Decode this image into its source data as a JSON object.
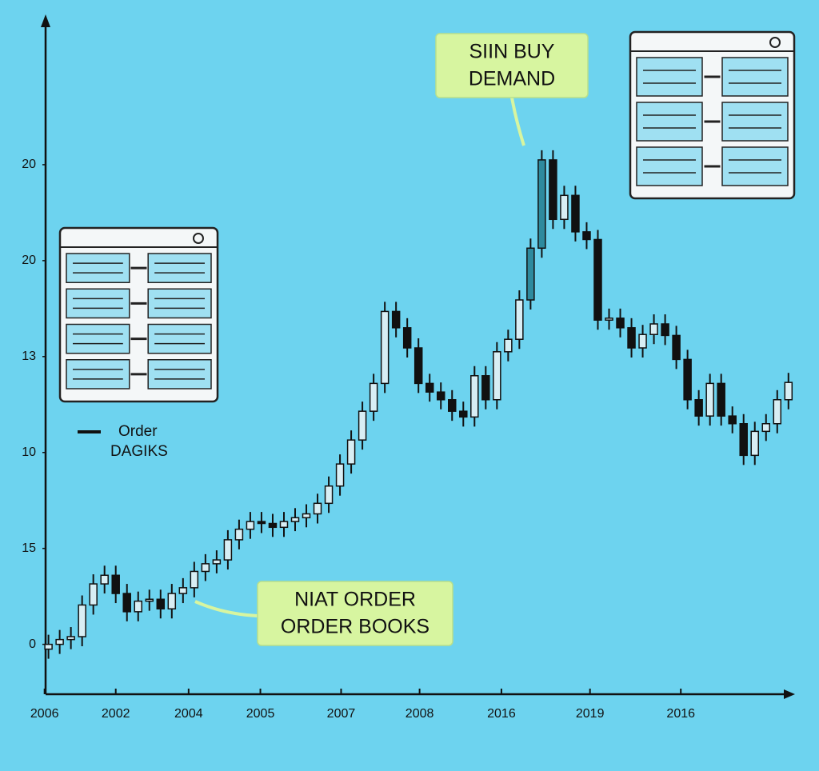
{
  "chart_data": {
    "type": "candlestick",
    "annotations": [
      {
        "lines": [
          "SIIN BUY",
          "DEMAND"
        ]
      },
      {
        "lines": [
          "NIAT ORDER",
          "ORDER BOOKS"
        ]
      }
    ],
    "legend": {
      "lines": [
        "Order",
        "DAGIKS"
      ]
    },
    "open": [
      -0.05,
      0.0,
      0.05,
      0.08,
      0.41,
      0.63,
      0.72,
      0.53,
      0.34,
      0.45,
      0.47,
      0.37,
      0.53,
      0.59,
      0.76,
      0.84,
      0.88,
      1.09,
      1.2,
      1.28,
      1.26,
      1.22,
      1.28,
      1.32,
      1.36,
      1.47,
      1.65,
      1.88,
      2.13,
      2.43,
      2.72,
      3.47,
      3.3,
      3.09,
      2.72,
      2.63,
      2.55,
      2.43,
      2.37,
      2.8,
      2.55,
      3.05,
      3.18,
      3.59,
      4.13,
      5.05,
      4.43,
      4.68,
      4.3,
      4.22,
      3.38,
      3.4,
      3.3,
      3.09,
      3.23,
      3.34,
      3.22,
      2.97,
      2.55,
      2.38,
      2.72,
      2.38,
      2.3,
      1.97,
      2.22,
      2.3,
      2.55
    ],
    "high": [
      0.1,
      0.15,
      0.18,
      0.51,
      0.73,
      0.82,
      0.82,
      0.63,
      0.55,
      0.57,
      0.57,
      0.63,
      0.69,
      0.86,
      0.94,
      0.98,
      1.19,
      1.3,
      1.38,
      1.38,
      1.36,
      1.38,
      1.42,
      1.46,
      1.57,
      1.75,
      1.98,
      2.23,
      2.53,
      2.82,
      3.57,
      3.57,
      3.4,
      3.19,
      2.82,
      2.73,
      2.65,
      2.53,
      2.9,
      2.9,
      3.15,
      3.28,
      3.69,
      4.23,
      5.15,
      5.15,
      4.78,
      4.78,
      4.4,
      4.32,
      3.5,
      3.5,
      3.4,
      3.33,
      3.44,
      3.44,
      3.32,
      3.07,
      2.65,
      2.82,
      2.82,
      2.48,
      2.4,
      2.32,
      2.4,
      2.65,
      2.83
    ],
    "low": [
      -0.15,
      -0.1,
      -0.05,
      -0.02,
      0.31,
      0.53,
      0.43,
      0.24,
      0.24,
      0.35,
      0.27,
      0.27,
      0.43,
      0.49,
      0.66,
      0.74,
      0.78,
      0.99,
      1.1,
      1.16,
      1.12,
      1.12,
      1.18,
      1.22,
      1.26,
      1.37,
      1.55,
      1.78,
      2.03,
      2.33,
      2.62,
      3.2,
      2.99,
      2.62,
      2.53,
      2.45,
      2.33,
      2.27,
      2.27,
      2.45,
      2.45,
      2.95,
      3.08,
      3.49,
      4.03,
      4.33,
      4.33,
      4.2,
      4.12,
      3.28,
      3.28,
      3.2,
      2.99,
      2.99,
      3.13,
      3.12,
      2.87,
      2.45,
      2.28,
      2.28,
      2.28,
      2.2,
      1.87,
      1.87,
      2.12,
      2.2,
      2.45
    ],
    "close": [
      0.0,
      0.05,
      0.08,
      0.41,
      0.63,
      0.72,
      0.53,
      0.34,
      0.45,
      0.47,
      0.37,
      0.53,
      0.59,
      0.76,
      0.84,
      0.88,
      1.09,
      1.2,
      1.28,
      1.26,
      1.22,
      1.28,
      1.32,
      1.36,
      1.47,
      1.65,
      1.88,
      2.13,
      2.43,
      2.72,
      3.47,
      3.3,
      3.09,
      2.72,
      2.63,
      2.55,
      2.43,
      2.37,
      2.8,
      2.55,
      3.05,
      3.18,
      3.59,
      4.13,
      5.05,
      4.43,
      4.68,
      4.3,
      4.22,
      3.38,
      3.4,
      3.3,
      3.09,
      3.23,
      3.34,
      3.22,
      2.97,
      2.55,
      2.38,
      2.72,
      2.38,
      2.3,
      1.97,
      2.22,
      2.3,
      2.55,
      2.73
    ],
    "up_color": "#d8eef4",
    "down_color": "#111111",
    "highlight_color": "#2e8a9e",
    "xlim": [
      -0.4,
      66.3
    ],
    "ylim": [
      -0.52,
      6.55
    ],
    "yticks": [
      {
        "value": 0,
        "label": "0"
      },
      {
        "value": 1,
        "label": "15"
      },
      {
        "value": 2,
        "label": "10"
      },
      {
        "value": 3,
        "label": "13"
      },
      {
        "value": 4,
        "label": "20"
      },
      {
        "value": 5,
        "label": "20"
      }
    ],
    "xticks": [
      {
        "value": -0.35,
        "label": "2006"
      },
      {
        "value": 6.0,
        "label": "2002"
      },
      {
        "value": 12.5,
        "label": "2004"
      },
      {
        "value": 18.9,
        "label": "2005"
      },
      {
        "value": 26.1,
        "label": "2007"
      },
      {
        "value": 33.1,
        "label": "2008"
      },
      {
        "value": 40.4,
        "label": "2016"
      },
      {
        "value": 48.3,
        "label": "2019"
      },
      {
        "value": 56.4,
        "label": "2016"
      }
    ]
  }
}
